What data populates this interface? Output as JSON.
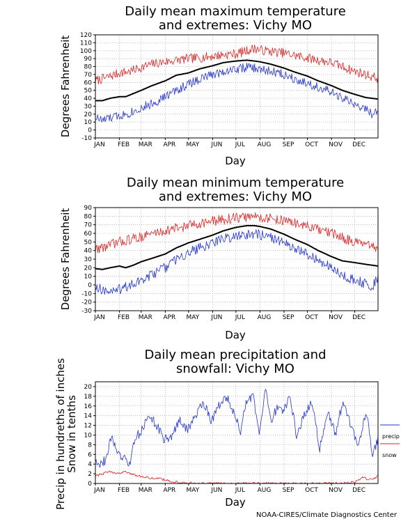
{
  "credit": "NOAA-CIRES/Climate Diagnostics Center",
  "colors": {
    "max": "#dd2222",
    "mean": "#000000",
    "min": "#2233cc",
    "precip": "#2233cc",
    "snow": "#dd2222",
    "grid": "#9a9a9a"
  },
  "chart_data": [
    {
      "type": "line",
      "title": [
        "Daily mean maximum temperature",
        "and extremes: Vichy MO"
      ],
      "xlabel": "Day",
      "ylabel": "Degrees Fahrenheit",
      "ylim": [
        -10,
        120
      ],
      "yticks": [
        -10,
        0,
        10,
        20,
        30,
        40,
        50,
        60,
        70,
        80,
        90,
        100,
        110,
        120
      ],
      "months": [
        "JAN",
        "FEB",
        "MAR",
        "APR",
        "MAY",
        "JUN",
        "JUL",
        "AUG",
        "SEP",
        "OCT",
        "NOV",
        "DEC"
      ],
      "grid": true,
      "series": [
        {
          "key": "max",
          "x": [
            1,
            15,
            32,
            46,
            60,
            74,
            91,
            105,
            121,
            135,
            152,
            166,
            182,
            196,
            206,
            213,
            227,
            244,
            258,
            274,
            288,
            305,
            319,
            335,
            349,
            365
          ],
          "values": [
            62,
            66,
            72,
            74,
            79,
            83,
            86,
            88,
            90,
            91,
            93,
            95,
            96,
            100,
            103,
            101,
            99,
            97,
            94,
            91,
            88,
            85,
            80,
            74,
            70,
            65
          ]
        },
        {
          "key": "mean",
          "x": [
            1,
            10,
            20,
            32,
            40,
            50,
            60,
            74,
            91,
            105,
            121,
            135,
            152,
            166,
            182,
            196,
            206,
            213,
            227,
            244,
            258,
            274,
            288,
            305,
            319,
            335,
            349,
            365
          ],
          "values": [
            37,
            37,
            40,
            42,
            42,
            46,
            50,
            56,
            62,
            69,
            72,
            77,
            81,
            85,
            87,
            88,
            87,
            86,
            83,
            78,
            73,
            68,
            62,
            56,
            50,
            45,
            41,
            39
          ]
        },
        {
          "key": "min",
          "x": [
            1,
            10,
            20,
            32,
            46,
            60,
            74,
            91,
            105,
            121,
            135,
            152,
            166,
            182,
            196,
            206,
            213,
            227,
            244,
            258,
            274,
            288,
            305,
            319,
            335,
            349,
            360,
            365
          ],
          "values": [
            16,
            12,
            15,
            18,
            22,
            28,
            33,
            42,
            50,
            58,
            64,
            70,
            74,
            77,
            79,
            78,
            76,
            74,
            70,
            65,
            59,
            54,
            47,
            40,
            32,
            26,
            19,
            24
          ]
        }
      ]
    },
    {
      "type": "line",
      "title": [
        "Daily mean minimum temperature",
        "and extremes: Vichy MO"
      ],
      "xlabel": "Day",
      "ylabel": "Degrees Fahrenheit",
      "ylim": [
        -30,
        90
      ],
      "yticks": [
        -30,
        -20,
        -10,
        0,
        10,
        20,
        30,
        40,
        50,
        60,
        70,
        80,
        90
      ],
      "months": [
        "JAN",
        "FEB",
        "MAR",
        "APR",
        "MAY",
        "JUN",
        "JUL",
        "AUG",
        "SEP",
        "OCT",
        "NOV",
        "DEC"
      ],
      "grid": true,
      "series": [
        {
          "key": "max",
          "x": [
            1,
            15,
            32,
            46,
            60,
            74,
            91,
            105,
            121,
            135,
            152,
            166,
            182,
            196,
            206,
            213,
            227,
            244,
            258,
            274,
            288,
            305,
            319,
            335,
            349,
            365
          ],
          "values": [
            42,
            45,
            50,
            53,
            56,
            60,
            63,
            66,
            69,
            72,
            74,
            76,
            78,
            79,
            80,
            79,
            77,
            75,
            72,
            68,
            64,
            60,
            55,
            50,
            46,
            42
          ]
        },
        {
          "key": "mean",
          "x": [
            1,
            10,
            20,
            32,
            40,
            50,
            60,
            74,
            91,
            105,
            121,
            135,
            152,
            166,
            182,
            196,
            206,
            213,
            227,
            244,
            258,
            274,
            288,
            305,
            319,
            335,
            349,
            365
          ],
          "values": [
            19,
            18,
            20,
            22,
            20,
            23,
            27,
            31,
            36,
            43,
            49,
            53,
            58,
            63,
            67,
            69,
            69,
            68,
            65,
            59,
            53,
            47,
            40,
            33,
            28,
            26,
            24,
            22
          ]
        },
        {
          "key": "min",
          "x": [
            1,
            10,
            20,
            32,
            46,
            60,
            74,
            91,
            105,
            121,
            135,
            152,
            166,
            182,
            196,
            206,
            213,
            227,
            244,
            258,
            274,
            288,
            305,
            319,
            335,
            349,
            358,
            365
          ],
          "values": [
            0,
            -6,
            -8,
            -5,
            0,
            5,
            12,
            20,
            30,
            38,
            43,
            49,
            54,
            57,
            59,
            60,
            58,
            55,
            49,
            42,
            35,
            29,
            20,
            12,
            5,
            2,
            -1,
            8
          ]
        }
      ]
    },
    {
      "type": "line",
      "title": [
        "Daily mean precipitation and",
        "snowfall: Vichy MO"
      ],
      "xlabel": "Day",
      "ylabel": [
        "Precip in hundreths of inches",
        "Snow in tenths"
      ],
      "ylim": [
        0,
        21
      ],
      "yticks": [
        0,
        2,
        4,
        6,
        8,
        10,
        12,
        14,
        16,
        18,
        20
      ],
      "months": [
        "JAN",
        "FEB",
        "MAR",
        "APR",
        "MAY",
        "JUN",
        "JUL",
        "AUG",
        "SEP",
        "OCT",
        "NOV",
        "DEC"
      ],
      "grid": true,
      "legend": [
        "precip",
        "snow"
      ],
      "legend_position": "right",
      "series": [
        {
          "key": "precip",
          "name": "precip",
          "x": [
            1,
            8,
            15,
            22,
            30,
            38,
            45,
            52,
            60,
            70,
            80,
            90,
            100,
            110,
            120,
            130,
            140,
            150,
            160,
            170,
            180,
            188,
            196,
            204,
            212,
            220,
            228,
            236,
            244,
            252,
            260,
            270,
            280,
            290,
            300,
            310,
            320,
            330,
            340,
            350,
            358,
            365
          ],
          "values": [
            5,
            4,
            5,
            10,
            6,
            5,
            4,
            9,
            11,
            14,
            12,
            9,
            10,
            13,
            11,
            14,
            17,
            13,
            16,
            18,
            14,
            11,
            17,
            18,
            10,
            19,
            13,
            16,
            15,
            18,
            10,
            14,
            17,
            7,
            15,
            10,
            17,
            12,
            8,
            15,
            6,
            9
          ]
        },
        {
          "key": "snow",
          "name": "snow",
          "x": [
            1,
            10,
            20,
            30,
            40,
            50,
            60,
            70,
            80,
            90,
            100,
            110,
            120,
            140,
            180,
            220,
            260,
            300,
            320,
            335,
            345,
            355,
            365
          ],
          "values": [
            1.5,
            2,
            2.5,
            2,
            2.5,
            1.8,
            1.5,
            1.2,
            1,
            0.8,
            0.4,
            0.2,
            0.1,
            0,
            0,
            0,
            0,
            0,
            0.05,
            0.3,
            1.2,
            0.8,
            1.5
          ]
        }
      ]
    }
  ]
}
